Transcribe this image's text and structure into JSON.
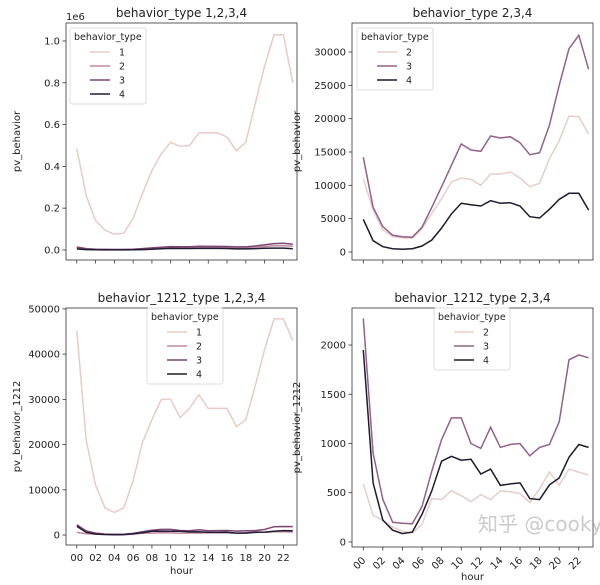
{
  "colors": {
    "1": "#e9cbc6",
    "2": "#c08aa2",
    "3": "#7d4674",
    "4": "#231b33",
    "2_of3": "#e6cec9",
    "3_of3": "#94608a",
    "4_of3": "#1e1a2c"
  },
  "watermark": "知乎 @cooky",
  "chart_data": [
    {
      "type": "line",
      "title": "behavior_type 1,2,3,4",
      "xlabel": "",
      "ylabel": "pv_behavior",
      "offset_text": "1e6",
      "legend_title": "behavior_type",
      "legend_placement": "top-left",
      "grid": false,
      "x": [
        "00",
        "01",
        "02",
        "03",
        "04",
        "05",
        "06",
        "07",
        "08",
        "09",
        "10",
        "11",
        "12",
        "13",
        "14",
        "15",
        "16",
        "17",
        "18",
        "19",
        "20",
        "21",
        "22",
        "23"
      ],
      "xtick_labels_shown": false,
      "ylim": [
        -48000,
        1086000
      ],
      "yticks": [
        0,
        200000,
        400000,
        600000,
        800000,
        1000000
      ],
      "ytick_labels": [
        "0.0",
        "0.2",
        "0.4",
        "0.6",
        "0.8",
        "1.0"
      ],
      "series": [
        {
          "name": "1",
          "color_key": "1",
          "values": [
            485000,
            260000,
            140000,
            95000,
            75000,
            80000,
            150000,
            270000,
            380000,
            460000,
            515000,
            495000,
            500000,
            560000,
            560000,
            560000,
            540000,
            475000,
            515000,
            700000,
            880000,
            1030000,
            1030000,
            800000
          ]
        },
        {
          "name": "2",
          "color_key": "2",
          "values": [
            11000,
            6300,
            3300,
            2300,
            2100,
            2100,
            3500,
            5800,
            8000,
            10500,
            11100,
            10900,
            10000,
            11700,
            11700,
            12000,
            11100,
            9800,
            10300,
            14000,
            16700,
            20400,
            20300,
            17700
          ]
        },
        {
          "name": "3",
          "color_key": "3",
          "values": [
            14200,
            6700,
            3800,
            2500,
            2300,
            2200,
            3700,
            6700,
            9800,
            13000,
            16200,
            15300,
            15100,
            17400,
            17100,
            17300,
            16400,
            14600,
            14900,
            19000,
            25000,
            30500,
            32500,
            27400
          ]
        },
        {
          "name": "4",
          "color_key": "4",
          "values": [
            4900,
            1700,
            800,
            500,
            400,
            500,
            900,
            1800,
            3600,
            5700,
            7300,
            7100,
            6900,
            7700,
            7300,
            7400,
            6900,
            5300,
            5100,
            6400,
            7900,
            8800,
            8800,
            6300
          ]
        }
      ]
    },
    {
      "type": "line",
      "title": "behavior_type 2,3,4",
      "xlabel": "",
      "ylabel": "pv_behavior",
      "offset_text": "",
      "legend_title": "behavior_type",
      "legend_placement": "top-left",
      "grid": false,
      "x": [
        "00",
        "01",
        "02",
        "03",
        "04",
        "05",
        "06",
        "07",
        "08",
        "09",
        "10",
        "11",
        "12",
        "13",
        "14",
        "15",
        "16",
        "17",
        "18",
        "19",
        "20",
        "21",
        "22",
        "23"
      ],
      "xtick_labels_shown": false,
      "ylim": [
        -1200,
        34350
      ],
      "yticks": [
        0,
        5000,
        10000,
        15000,
        20000,
        25000,
        30000
      ],
      "ytick_labels": [
        "0",
        "5000",
        "10000",
        "15000",
        "20000",
        "25000",
        "30000"
      ],
      "series": [
        {
          "name": "2",
          "color_key": "2_of3",
          "values": [
            11000,
            6300,
            3300,
            2300,
            2100,
            2100,
            3500,
            5800,
            8000,
            10500,
            11100,
            10900,
            10000,
            11700,
            11700,
            12000,
            11100,
            9800,
            10300,
            14000,
            16700,
            20400,
            20300,
            17700
          ]
        },
        {
          "name": "3",
          "color_key": "3_of3",
          "values": [
            14200,
            6700,
            3800,
            2500,
            2300,
            2200,
            3700,
            6700,
            9800,
            13000,
            16200,
            15300,
            15100,
            17400,
            17100,
            17300,
            16400,
            14600,
            14900,
            19000,
            25000,
            30500,
            32500,
            27400
          ]
        },
        {
          "name": "4",
          "color_key": "4_of3",
          "values": [
            4900,
            1700,
            800,
            500,
            400,
            500,
            900,
            1800,
            3600,
            5700,
            7300,
            7100,
            6900,
            7700,
            7300,
            7400,
            6900,
            5300,
            5100,
            6400,
            7900,
            8800,
            8800,
            6300
          ]
        }
      ]
    },
    {
      "type": "line",
      "title": "behavior_1212_type 1,2,3,4",
      "xlabel": "hour",
      "ylabel": "pv_behavior_1212",
      "offset_text": "",
      "legend_title": "behavior_type",
      "legend_placement": "top-center",
      "grid": false,
      "x": [
        "00",
        "01",
        "02",
        "03",
        "04",
        "05",
        "06",
        "07",
        "08",
        "09",
        "10",
        "11",
        "12",
        "13",
        "14",
        "15",
        "16",
        "17",
        "18",
        "19",
        "20",
        "21",
        "22",
        "23"
      ],
      "xtick_labels_shown": true,
      "xtick_rotation": 0,
      "ylim": [
        -2200,
        50200
      ],
      "yticks": [
        0,
        10000,
        20000,
        30000,
        40000,
        50000
      ],
      "ytick_labels": [
        "0",
        "10000",
        "20000",
        "30000",
        "40000",
        "50000"
      ],
      "series": [
        {
          "name": "1",
          "color_key": "1",
          "values": [
            45200,
            21000,
            11000,
            6000,
            5000,
            6000,
            12000,
            20500,
            25500,
            30000,
            30000,
            26000,
            28000,
            31000,
            28000,
            28000,
            28000,
            24000,
            25500,
            33000,
            41000,
            47800,
            47800,
            43000
          ]
        },
        {
          "name": "2",
          "color_key": "2",
          "values": [
            590,
            270,
            220,
            150,
            110,
            90,
            180,
            440,
            430,
            520,
            470,
            410,
            480,
            430,
            520,
            510,
            490,
            400,
            540,
            710,
            580,
            740,
            710,
            680
          ]
        },
        {
          "name": "3",
          "color_key": "3",
          "values": [
            2270,
            900,
            430,
            200,
            190,
            185,
            360,
            720,
            1040,
            1260,
            1260,
            1000,
            950,
            1165,
            960,
            990,
            1000,
            875,
            960,
            990,
            1220,
            1850,
            1900,
            1870
          ]
        },
        {
          "name": "4",
          "color_key": "4",
          "values": [
            1950,
            600,
            220,
            120,
            85,
            100,
            280,
            520,
            820,
            870,
            830,
            840,
            690,
            740,
            575,
            590,
            600,
            440,
            430,
            580,
            650,
            860,
            990,
            960
          ]
        }
      ]
    },
    {
      "type": "line",
      "title": "behavior_1212_type 2,3,4",
      "xlabel": "hour",
      "ylabel": "pv_behavior_1212",
      "offset_text": "",
      "legend_title": "behavior_type",
      "legend_placement": "top-center",
      "grid": false,
      "x": [
        "00",
        "01",
        "02",
        "03",
        "04",
        "05",
        "06",
        "07",
        "08",
        "09",
        "10",
        "11",
        "12",
        "13",
        "14",
        "15",
        "16",
        "17",
        "18",
        "19",
        "20",
        "21",
        "22",
        "23"
      ],
      "xtick_labels_shown": true,
      "xtick_rotation": 45,
      "ylim": [
        -51,
        2376
      ],
      "yticks": [
        0,
        500,
        1000,
        1500,
        2000
      ],
      "ytick_labels": [
        "0",
        "500",
        "1000",
        "1500",
        "2000"
      ],
      "series": [
        {
          "name": "2",
          "color_key": "2_of3",
          "values": [
            590,
            270,
            220,
            150,
            110,
            90,
            180,
            440,
            430,
            520,
            470,
            410,
            480,
            430,
            520,
            510,
            490,
            400,
            540,
            710,
            580,
            740,
            710,
            680
          ]
        },
        {
          "name": "3",
          "color_key": "3_of3",
          "values": [
            2270,
            900,
            430,
            200,
            190,
            185,
            360,
            720,
            1040,
            1260,
            1260,
            1000,
            950,
            1165,
            960,
            990,
            1000,
            875,
            960,
            990,
            1220,
            1850,
            1900,
            1870
          ]
        },
        {
          "name": "4",
          "color_key": "4_of3",
          "values": [
            1950,
            600,
            220,
            120,
            85,
            100,
            280,
            520,
            820,
            870,
            830,
            840,
            690,
            740,
            575,
            590,
            600,
            440,
            430,
            580,
            650,
            860,
            990,
            960
          ]
        }
      ]
    }
  ]
}
